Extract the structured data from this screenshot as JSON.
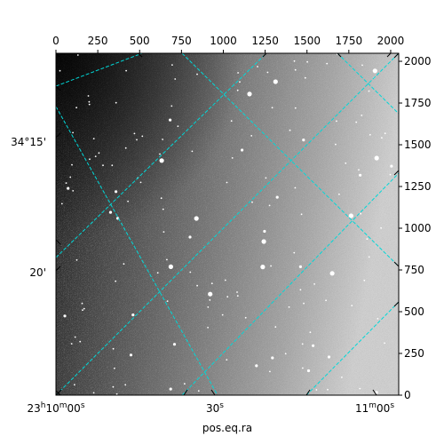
{
  "figure": {
    "xlabel": "pos.eq.ra",
    "grid_color": "#00d8d8",
    "pixel_axes": {
      "x_top_ticks": [
        "0",
        "250",
        "500",
        "750",
        "1000",
        "1250",
        "1500",
        "1750",
        "2000"
      ],
      "x_top_values": [
        0,
        250,
        500,
        750,
        1000,
        1250,
        1500,
        1750,
        2000
      ],
      "y_right_ticks": [
        "0",
        "250",
        "500",
        "750",
        "1000",
        "1250",
        "1500",
        "1750",
        "2000"
      ],
      "y_right_values": [
        0,
        250,
        500,
        750,
        1000,
        1250,
        1500,
        1750,
        2000
      ],
      "x_range": [
        0,
        2048
      ],
      "y_range": [
        0,
        2048
      ]
    },
    "world_axes": {
      "ra_ticks": [
        {
          "h": "23",
          "m": "10",
          "s": "00",
          "sup_h": "h",
          "sup_m": "m",
          "sup_s": "s"
        },
        {
          "s": "30",
          "sup_s": "s"
        },
        {
          "h": "",
          "m": "11",
          "s": "00",
          "sup_m": "m",
          "sup_s": "s"
        }
      ],
      "dec_ticks": [
        "34°15'",
        "20'"
      ]
    }
  }
}
